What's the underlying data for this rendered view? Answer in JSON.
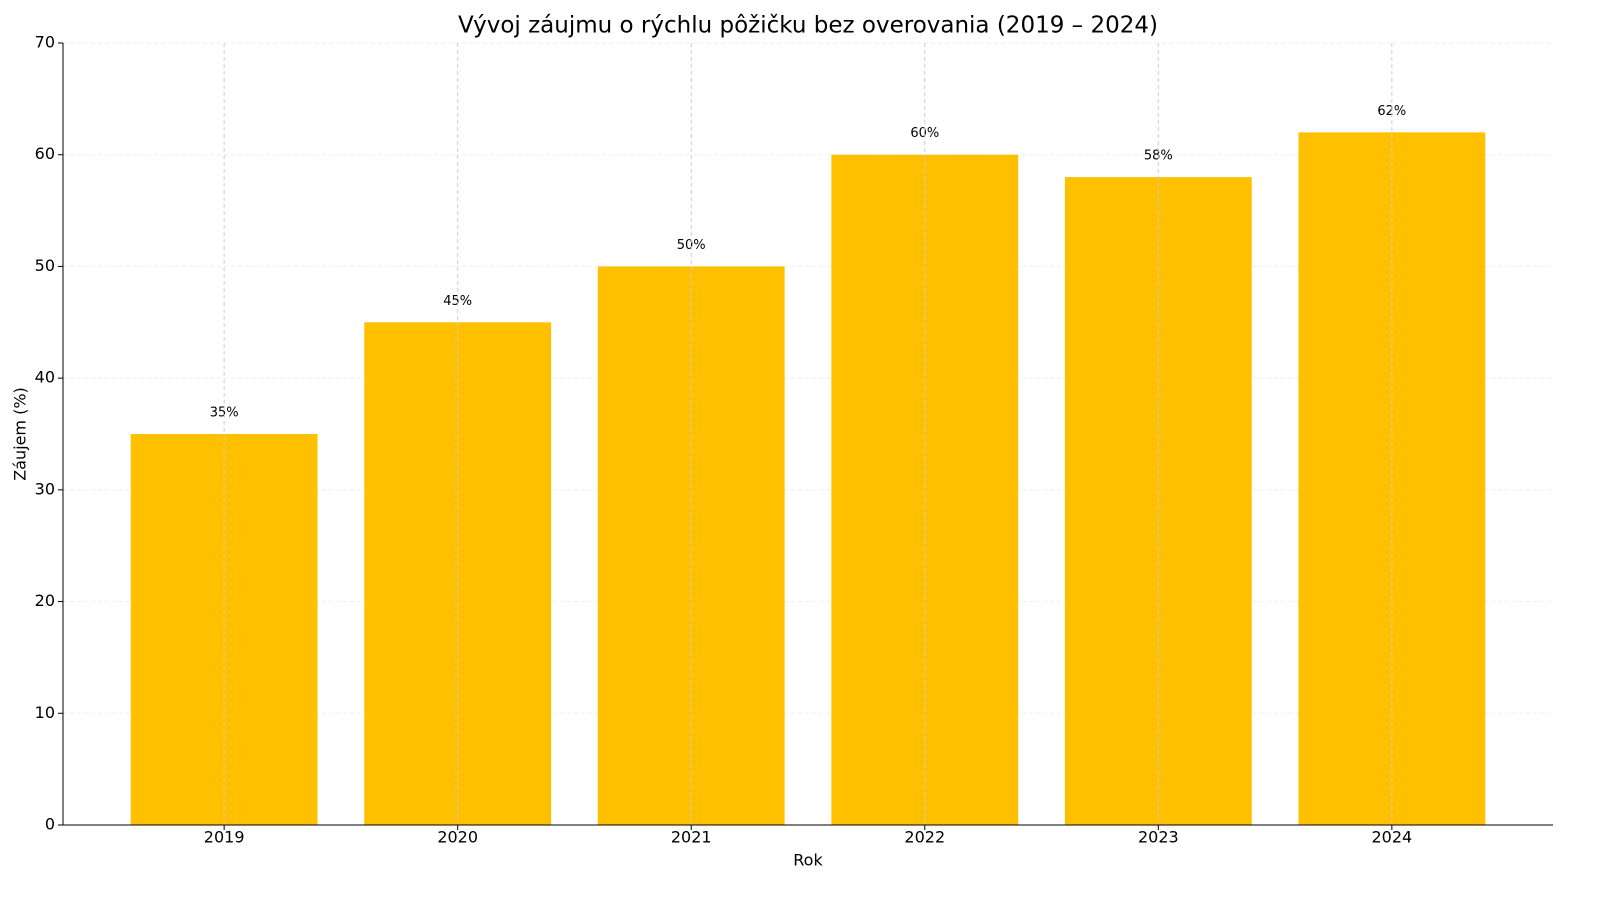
{
  "chart_data": {
    "type": "bar",
    "title": "Vývoj záujmu o rýchlu pôžičku bez overovania (2019 – 2024)",
    "xlabel": "Rok",
    "ylabel": "Záujem (%)",
    "categories": [
      "2019",
      "2020",
      "2021",
      "2022",
      "2023",
      "2024"
    ],
    "values": [
      35,
      45,
      50,
      60,
      58,
      62
    ],
    "value_labels": [
      "35%",
      "45%",
      "50%",
      "60%",
      "58%",
      "62%"
    ],
    "color": "#ffc000",
    "ylim": [
      0,
      70
    ],
    "yticks": [
      0,
      10,
      20,
      30,
      40,
      50,
      60,
      70
    ],
    "grid": true
  }
}
